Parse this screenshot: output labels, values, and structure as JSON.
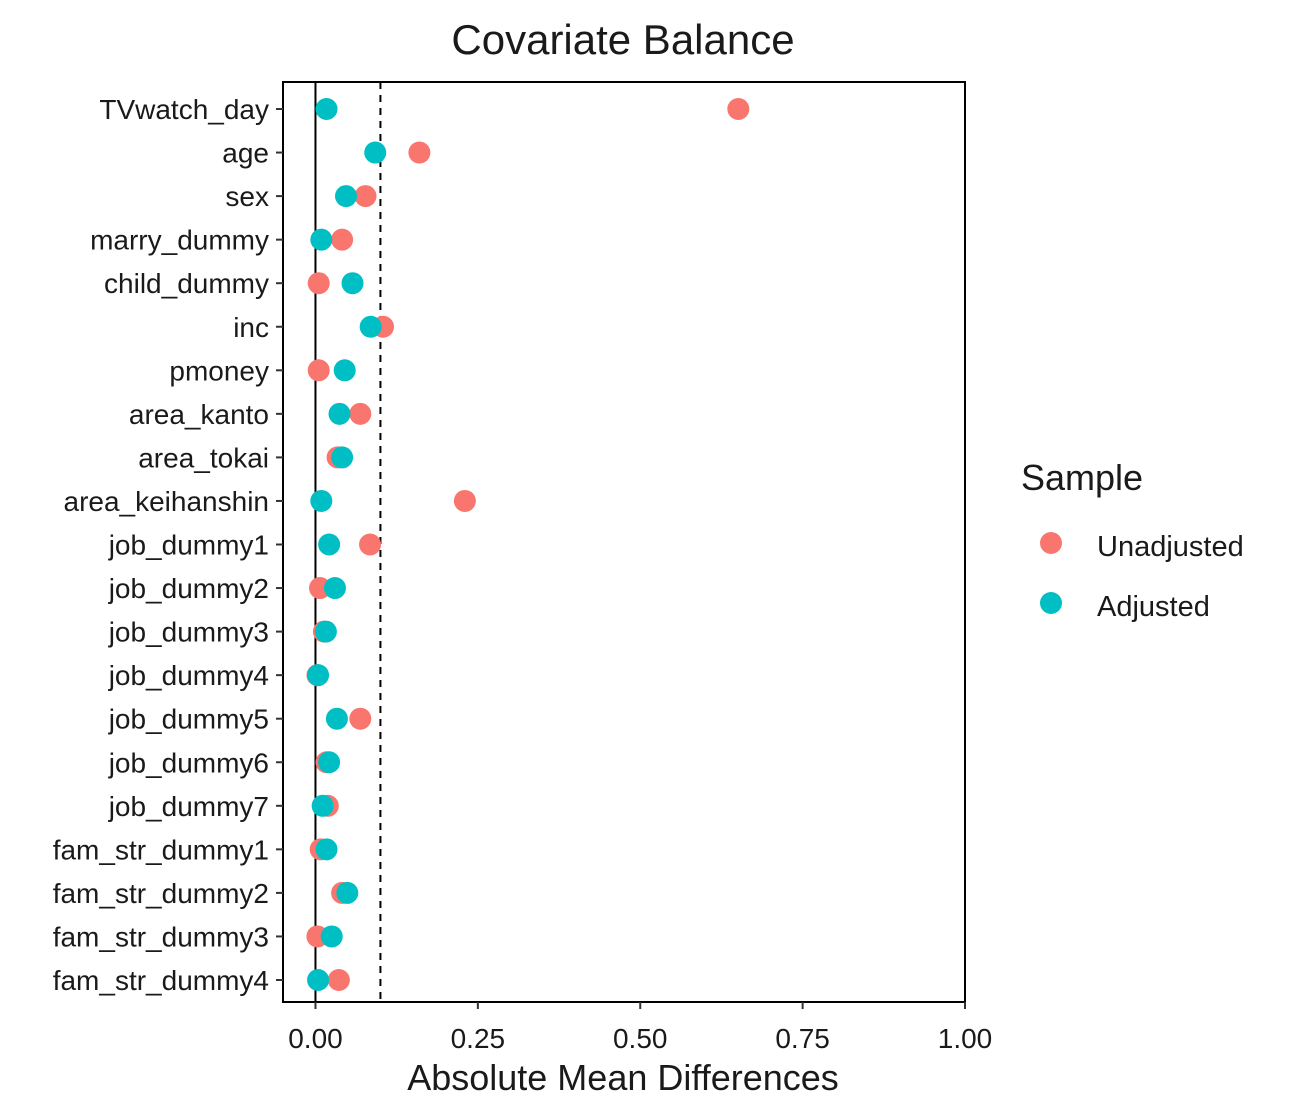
{
  "chart_data": {
    "type": "scatter",
    "title": "Covariate Balance",
    "xlabel": "Absolute Mean Differences",
    "ylabel": "",
    "xlim": [
      -0.05,
      1.0
    ],
    "x_ticks": [
      "0.00",
      "0.25",
      "0.50",
      "0.75",
      "1.00"
    ],
    "x_tick_values": [
      0,
      0.25,
      0.5,
      0.75,
      1.0
    ],
    "threshold": 0.1,
    "zero_line": 0,
    "categories": [
      "TVwatch_day",
      "age",
      "sex",
      "marry_dummy",
      "child_dummy",
      "inc",
      "pmoney",
      "area_kanto",
      "area_tokai",
      "area_keihanshin",
      "job_dummy1",
      "job_dummy2",
      "job_dummy3",
      "job_dummy4",
      "job_dummy5",
      "job_dummy6",
      "job_dummy7",
      "fam_str_dummy1",
      "fam_str_dummy2",
      "fam_str_dummy3",
      "fam_str_dummy4"
    ],
    "series": [
      {
        "name": "Unadjusted",
        "color": "#F8766D",
        "values": [
          0.651,
          0.16,
          0.077,
          0.041,
          0.005,
          0.104,
          0.005,
          0.069,
          0.034,
          0.23,
          0.084,
          0.007,
          0.013,
          0.003,
          0.069,
          0.017,
          0.019,
          0.008,
          0.041,
          0.003,
          0.036
        ]
      },
      {
        "name": "Adjusted",
        "color": "#00BFC4",
        "values": [
          0.017,
          0.092,
          0.047,
          0.009,
          0.057,
          0.085,
          0.045,
          0.037,
          0.041,
          0.009,
          0.021,
          0.03,
          0.016,
          0.004,
          0.033,
          0.021,
          0.011,
          0.017,
          0.049,
          0.025,
          0.004
        ]
      }
    ],
    "legend": {
      "title": "Sample",
      "position": "right"
    }
  }
}
